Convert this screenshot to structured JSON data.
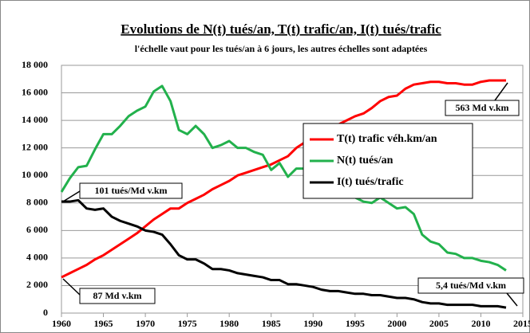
{
  "chart_data": {
    "type": "line",
    "title": "Evolutions de N(t) tués/an, T(t) trafic/an, I(t) tués/trafic",
    "subtitle": "l'échelle vaut pour les tués/an à 6 jours, les autres échelles sont adaptées",
    "x": [
      1960,
      1961,
      1962,
      1963,
      1964,
      1965,
      1966,
      1967,
      1968,
      1969,
      1970,
      1971,
      1972,
      1973,
      1974,
      1975,
      1976,
      1977,
      1978,
      1979,
      1980,
      1981,
      1982,
      1983,
      1984,
      1985,
      1986,
      1987,
      1988,
      1989,
      1990,
      1991,
      1992,
      1993,
      1994,
      1995,
      1996,
      1997,
      1998,
      1999,
      2000,
      2001,
      2002,
      2003,
      2004,
      2005,
      2006,
      2007,
      2008,
      2009,
      2010,
      2011,
      2012,
      2013
    ],
    "series": [
      {
        "name": "T(t) trafic véh.km/an",
        "color": "#ff0000",
        "values": [
          2600,
          2900,
          3200,
          3500,
          3900,
          4200,
          4600,
          5000,
          5400,
          5800,
          6300,
          6800,
          7200,
          7600,
          7600,
          8000,
          8300,
          8600,
          9000,
          9300,
          9600,
          10000,
          10200,
          10400,
          10600,
          10800,
          11100,
          11400,
          12000,
          12400,
          12900,
          13300,
          13600,
          13700,
          14000,
          14300,
          14500,
          14900,
          15400,
          15700,
          15800,
          16300,
          16600,
          16700,
          16800,
          16800,
          16700,
          16700,
          16600,
          16600,
          16800,
          16900,
          16900,
          16900
        ]
      },
      {
        "name": "N(t) tués/an",
        "color": "#22b14c",
        "values": [
          8800,
          9800,
          10600,
          10700,
          11900,
          13000,
          13000,
          13600,
          14300,
          14700,
          15000,
          16100,
          16500,
          15400,
          13300,
          13000,
          13600,
          13000,
          12000,
          12200,
          12500,
          12000,
          12000,
          11700,
          11500,
          10400,
          10900,
          9900,
          10500,
          10500,
          10300,
          9600,
          9100,
          9100,
          8600,
          8400,
          8100,
          8000,
          8400,
          8000,
          7600,
          7700,
          7200,
          5700,
          5200,
          5000,
          4400,
          4300,
          4000,
          4000,
          3800,
          3700,
          3500,
          3100
        ]
      },
      {
        "name": "I(t) tués/trafic",
        "color": "#000000",
        "values": [
          8100,
          8100,
          8200,
          7600,
          7500,
          7600,
          7000,
          6700,
          6500,
          6300,
          6000,
          5900,
          5700,
          5000,
          4200,
          3900,
          3900,
          3600,
          3200,
          3200,
          3100,
          2900,
          2800,
          2700,
          2600,
          2400,
          2400,
          2100,
          2100,
          2000,
          1900,
          1700,
          1600,
          1600,
          1500,
          1400,
          1400,
          1300,
          1300,
          1200,
          1100,
          1100,
          1000,
          800,
          700,
          700,
          600,
          600,
          600,
          600,
          500,
          500,
          500,
          400
        ]
      }
    ],
    "annotations": [
      "101 tués/Md v.km",
      "87 Md v.km",
      "563 Md v.km",
      "5,4 tués/Md v.km"
    ],
    "xlim": [
      1960,
      2015
    ],
    "xticks": [
      1960,
      1965,
      1970,
      1975,
      1980,
      1985,
      1990,
      1995,
      2000,
      2005,
      2010,
      2015
    ],
    "ylim": [
      0,
      18000
    ],
    "yticks": [
      0,
      {
        "value": 2000,
        "label": "2 000"
      },
      {
        "value": 4000,
        "label": "4 000"
      },
      {
        "value": 6000,
        "label": "6 000"
      },
      {
        "value": 8000,
        "label": "8 000"
      },
      {
        "value": 10000,
        "label": "10 000"
      },
      {
        "value": 12000,
        "label": "12 000"
      },
      {
        "value": 14000,
        "label": "14 000"
      },
      {
        "value": 16000,
        "label": "16 000"
      },
      {
        "value": 18000,
        "label": "18 000"
      }
    ],
    "grid": true,
    "legend": "right"
  }
}
